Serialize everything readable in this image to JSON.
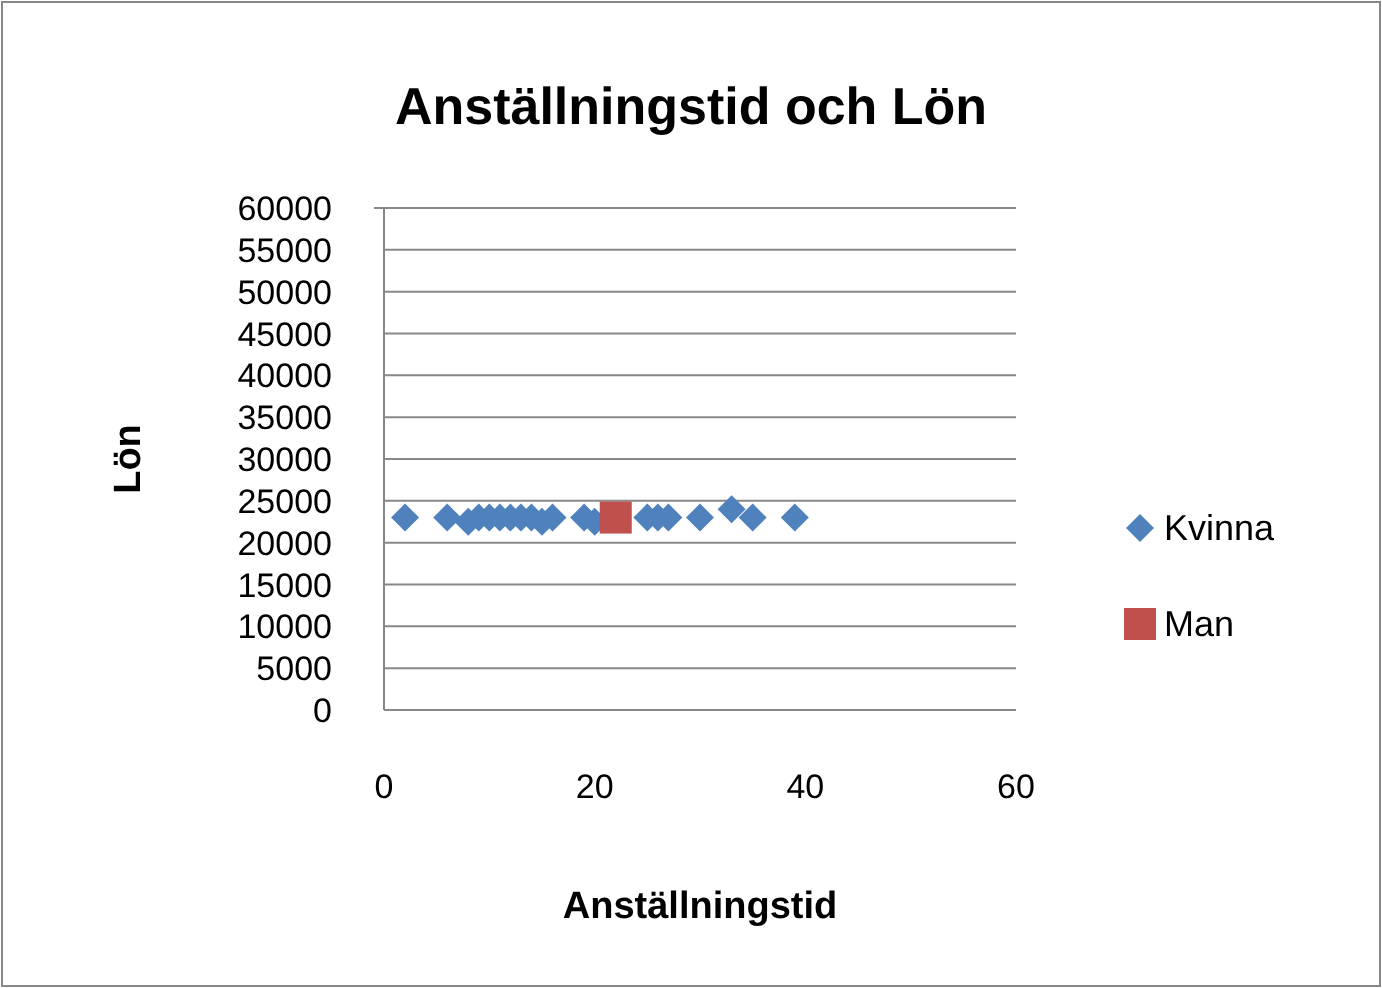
{
  "chart_data": {
    "type": "scatter",
    "title": "Anställningstid och Lön",
    "xlabel": "Anställningstid",
    "ylabel": "Lön",
    "xlim": [
      0,
      60
    ],
    "xticks": [
      0,
      20,
      40,
      60
    ],
    "ylim": [
      0,
      60000
    ],
    "yticks": [
      0,
      5000,
      10000,
      15000,
      20000,
      25000,
      30000,
      35000,
      40000,
      45000,
      50000,
      55000,
      60000
    ],
    "grid": "y",
    "legend": "right",
    "series": [
      {
        "name": "Kvinna",
        "color": "#4f81bd",
        "marker": "diamond",
        "x": [
          2,
          6,
          8,
          9,
          10,
          11,
          12,
          13,
          14,
          15,
          16,
          19,
          20,
          25,
          26,
          27,
          30,
          33,
          35,
          39
        ],
        "values": [
          23000,
          23000,
          22500,
          23000,
          23000,
          23000,
          23000,
          23000,
          23000,
          22500,
          23000,
          23000,
          22500,
          23000,
          23000,
          23000,
          23000,
          24000,
          23000,
          23000
        ]
      },
      {
        "name": "Man",
        "color": "#c0504d",
        "marker": "square",
        "x": [
          22
        ],
        "values": [
          23000
        ]
      }
    ]
  }
}
